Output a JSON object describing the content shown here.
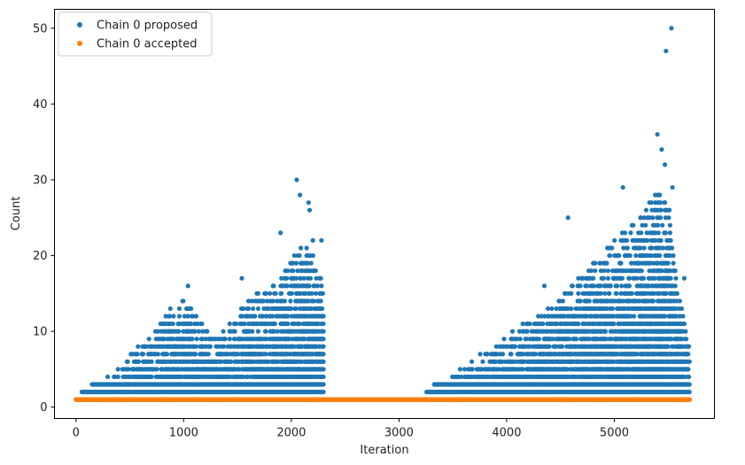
{
  "chart_data": {
    "type": "scatter",
    "title": "",
    "xlabel": "Iteration",
    "ylabel": "Count",
    "xlim": [
      -200,
      5930
    ],
    "ylim": [
      -1.5,
      52.5
    ],
    "xticks": [
      0,
      1000,
      2000,
      3000,
      4000,
      5000
    ],
    "yticks": [
      0,
      10,
      20,
      30,
      40,
      50
    ],
    "grid": false,
    "legend": "top-left",
    "series": [
      {
        "name": "Chain 0 proposed",
        "color": "#1f77b4",
        "description_of_data": "Proposed counts per iteration over iterations 0-2300 and 3250-5700",
        "segments": [
          {
            "x_range": [
              0,
              2300
            ],
            "rows_min": 1
          },
          {
            "x_range": [
              3250,
              5700
            ],
            "rows_min": 1
          }
        ],
        "envelope": [
          [
            0,
            1
          ],
          [
            100,
            2
          ],
          [
            200,
            3
          ],
          [
            300,
            4
          ],
          [
            400,
            5
          ],
          [
            500,
            7
          ],
          [
            600,
            8
          ],
          [
            700,
            9
          ],
          [
            800,
            11
          ],
          [
            900,
            13
          ],
          [
            1000,
            14
          ],
          [
            1100,
            12
          ],
          [
            1200,
            10
          ],
          [
            1300,
            9
          ],
          [
            1400,
            10
          ],
          [
            1500,
            12
          ],
          [
            1600,
            14
          ],
          [
            1700,
            15
          ],
          [
            1800,
            15
          ],
          [
            1900,
            17
          ],
          [
            2000,
            19
          ],
          [
            2100,
            21
          ],
          [
            2200,
            20
          ],
          [
            2300,
            16
          ],
          [
            3250,
            2
          ],
          [
            3400,
            3
          ],
          [
            3500,
            4
          ],
          [
            3600,
            5
          ],
          [
            3700,
            6
          ],
          [
            3800,
            7
          ],
          [
            3900,
            8
          ],
          [
            4000,
            9
          ],
          [
            4100,
            10
          ],
          [
            4200,
            11
          ],
          [
            4300,
            12
          ],
          [
            4400,
            13
          ],
          [
            4500,
            14
          ],
          [
            4600,
            16
          ],
          [
            4700,
            17
          ],
          [
            4800,
            19
          ],
          [
            4900,
            20
          ],
          [
            5000,
            22
          ],
          [
            5100,
            23
          ],
          [
            5200,
            24
          ],
          [
            5300,
            26
          ],
          [
            5400,
            28
          ],
          [
            5500,
            27
          ],
          [
            5600,
            15
          ],
          [
            5700,
            7
          ]
        ],
        "outliers": [
          {
            "x": 1040,
            "y": 16
          },
          {
            "x": 1540,
            "y": 17
          },
          {
            "x": 1900,
            "y": 23
          },
          {
            "x": 2050,
            "y": 30
          },
          {
            "x": 2080,
            "y": 28
          },
          {
            "x": 2160,
            "y": 27
          },
          {
            "x": 2170,
            "y": 26
          },
          {
            "x": 2200,
            "y": 22
          },
          {
            "x": 2280,
            "y": 22
          },
          {
            "x": 4350,
            "y": 16
          },
          {
            "x": 4570,
            "y": 25
          },
          {
            "x": 5080,
            "y": 29
          },
          {
            "x": 5380,
            "y": 28
          },
          {
            "x": 5400,
            "y": 36
          },
          {
            "x": 5440,
            "y": 34
          },
          {
            "x": 5470,
            "y": 32
          },
          {
            "x": 5480,
            "y": 47
          },
          {
            "x": 5530,
            "y": 50
          },
          {
            "x": 5540,
            "y": 29
          },
          {
            "x": 5510,
            "y": 26
          },
          {
            "x": 5650,
            "y": 17
          }
        ]
      },
      {
        "name": "Chain 0 accepted",
        "color": "#ff7f0e",
        "x_range": [
          0,
          5700
        ],
        "y": 1
      }
    ]
  }
}
